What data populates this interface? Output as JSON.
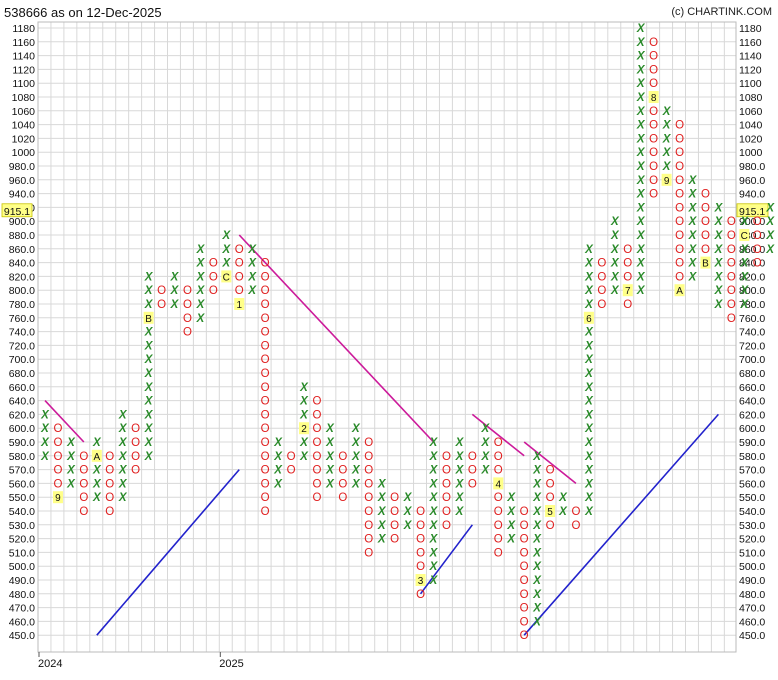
{
  "header": {
    "title": "538666 as on 12-Dec-2025",
    "credit": "(c) CHARTINK.COM"
  },
  "chart_data": {
    "type": "point-and-figure",
    "y_ticks": [
      450,
      460,
      470,
      480,
      490,
      500,
      510,
      520,
      530,
      540,
      550,
      560,
      570,
      580,
      590,
      600,
      620,
      640,
      660,
      680,
      700,
      720,
      740,
      760,
      780,
      800,
      820,
      840,
      860,
      880,
      900,
      920,
      940,
      960,
      980,
      1000,
      1020,
      1040,
      1060,
      1080,
      1100,
      1120,
      1140,
      1160,
      1180
    ],
    "y_tick_labels": [
      "450.0",
      "460.0",
      "470.0",
      "480.0",
      "490.0",
      "500.0",
      "510.0",
      "520.0",
      "530.0",
      "540.0",
      "550.0",
      "560.0",
      "570.0",
      "580.0",
      "590.0",
      "600.0",
      "620.0",
      "640.0",
      "660.0",
      "680.0",
      "700.0",
      "720.0",
      "740.0",
      "760.0",
      "780.0",
      "800.0",
      "820.0",
      "840.0",
      "860.0",
      "880.0",
      "900.0",
      "920.0",
      "940.0",
      "960.0",
      "980.0",
      "1000",
      "1020",
      "1040",
      "1060",
      "1080",
      "1100",
      "1120",
      "1140",
      "1160",
      "1180"
    ],
    "last_price": "915.1",
    "last_price_level": 915.1,
    "x_labels": [
      {
        "label": "2024",
        "column": 0
      },
      {
        "label": "2025",
        "column": 14
      }
    ],
    "columns": [
      {
        "type": "X",
        "low": 580,
        "high": 620
      },
      {
        "type": "O",
        "low": 550,
        "high": 600,
        "marks": [
          {
            "level": 550,
            "label": "9"
          }
        ]
      },
      {
        "type": "X",
        "low": 560,
        "high": 590
      },
      {
        "type": "O",
        "low": 540,
        "high": 580
      },
      {
        "type": "X",
        "low": 550,
        "high": 590,
        "marks": [
          {
            "level": 580,
            "label": "A"
          }
        ]
      },
      {
        "type": "O",
        "low": 540,
        "high": 580
      },
      {
        "type": "X",
        "low": 550,
        "high": 620
      },
      {
        "type": "O",
        "low": 570,
        "high": 600
      },
      {
        "type": "X",
        "low": 580,
        "high": 820,
        "marks": [
          {
            "level": 760,
            "label": "B"
          }
        ]
      },
      {
        "type": "O",
        "low": 780,
        "high": 800
      },
      {
        "type": "X",
        "low": 780,
        "high": 820
      },
      {
        "type": "O",
        "low": 740,
        "high": 800
      },
      {
        "type": "X",
        "low": 760,
        "high": 860
      },
      {
        "type": "O",
        "low": 800,
        "high": 840
      },
      {
        "type": "X",
        "low": 820,
        "high": 880,
        "marks": [
          {
            "level": 820,
            "label": "C"
          }
        ]
      },
      {
        "type": "O",
        "low": 780,
        "high": 860,
        "marks": [
          {
            "level": 780,
            "label": "1"
          }
        ]
      },
      {
        "type": "X",
        "low": 800,
        "high": 860
      },
      {
        "type": "O",
        "low": 540,
        "high": 840
      },
      {
        "type": "X",
        "low": 560,
        "high": 590
      },
      {
        "type": "O",
        "low": 570,
        "high": 580
      },
      {
        "type": "X",
        "low": 580,
        "high": 660,
        "marks": [
          {
            "level": 600,
            "label": "2"
          }
        ]
      },
      {
        "type": "O",
        "low": 550,
        "high": 640
      },
      {
        "type": "X",
        "low": 560,
        "high": 600
      },
      {
        "type": "O",
        "low": 550,
        "high": 580
      },
      {
        "type": "X",
        "low": 560,
        "high": 600
      },
      {
        "type": "O",
        "low": 510,
        "high": 590
      },
      {
        "type": "X",
        "low": 520,
        "high": 560
      },
      {
        "type": "O",
        "low": 520,
        "high": 550
      },
      {
        "type": "X",
        "low": 530,
        "high": 550
      },
      {
        "type": "O",
        "low": 480,
        "high": 540,
        "marks": [
          {
            "level": 490,
            "label": "3"
          }
        ]
      },
      {
        "type": "X",
        "low": 490,
        "high": 590
      },
      {
        "type": "O",
        "low": 530,
        "high": 580
      },
      {
        "type": "X",
        "low": 540,
        "high": 590
      },
      {
        "type": "O",
        "low": 560,
        "high": 580
      },
      {
        "type": "X",
        "low": 570,
        "high": 600
      },
      {
        "type": "O",
        "low": 510,
        "high": 590,
        "marks": [
          {
            "level": 560,
            "label": "4"
          }
        ]
      },
      {
        "type": "X",
        "low": 520,
        "high": 550
      },
      {
        "type": "O",
        "low": 450,
        "high": 540
      },
      {
        "type": "X",
        "low": 460,
        "high": 580
      },
      {
        "type": "O",
        "low": 530,
        "high": 570,
        "marks": [
          {
            "level": 540,
            "label": "5"
          }
        ]
      },
      {
        "type": "X",
        "low": 540,
        "high": 550
      },
      {
        "type": "O",
        "low": 530,
        "high": 540
      },
      {
        "type": "X",
        "low": 540,
        "high": 860,
        "marks": [
          {
            "level": 760,
            "label": "6"
          }
        ]
      },
      {
        "type": "O",
        "low": 780,
        "high": 840
      },
      {
        "type": "X",
        "low": 800,
        "high": 900
      },
      {
        "type": "O",
        "low": 780,
        "high": 860,
        "marks": [
          {
            "level": 800,
            "label": "7"
          }
        ]
      },
      {
        "type": "X",
        "low": 800,
        "high": 1180
      },
      {
        "type": "O",
        "low": 940,
        "high": 1160,
        "marks": [
          {
            "level": 1080,
            "label": "8"
          }
        ]
      },
      {
        "type": "X",
        "low": 960,
        "high": 1060,
        "marks": [
          {
            "level": 960,
            "label": "9"
          }
        ]
      },
      {
        "type": "O",
        "low": 800,
        "high": 1040,
        "marks": [
          {
            "level": 800,
            "label": "A"
          }
        ]
      },
      {
        "type": "X",
        "low": 820,
        "high": 960
      },
      {
        "type": "O",
        "low": 840,
        "high": 940,
        "marks": [
          {
            "level": 840,
            "label": "B"
          }
        ]
      },
      {
        "type": "X",
        "low": 780,
        "high": 920
      },
      {
        "type": "O",
        "low": 760,
        "high": 900
      },
      {
        "type": "X",
        "low": 780,
        "high": 900,
        "marks": [
          {
            "level": 880,
            "label": "C"
          }
        ]
      },
      {
        "type": "O",
        "low": 840,
        "high": 900
      },
      {
        "type": "X",
        "low": 860,
        "high": 920
      }
    ],
    "trendlines": [
      {
        "kind": "resistance",
        "color": "#cc1a9a",
        "from": {
          "column": 0,
          "level": 640
        },
        "to": {
          "column": 3,
          "level": 590
        }
      },
      {
        "kind": "support",
        "color": "#2222cc",
        "from": {
          "column": 4,
          "level": 450
        },
        "to": {
          "column": 15,
          "level": 570
        }
      },
      {
        "kind": "resistance",
        "color": "#cc1a9a",
        "from": {
          "column": 15,
          "level": 880
        },
        "to": {
          "column": 30,
          "level": 590
        }
      },
      {
        "kind": "support",
        "color": "#2222cc",
        "from": {
          "column": 29,
          "level": 480
        },
        "to": {
          "column": 33,
          "level": 530
        }
      },
      {
        "kind": "resistance",
        "color": "#cc1a9a",
        "from": {
          "column": 33,
          "level": 620
        },
        "to": {
          "column": 37,
          "level": 580
        }
      },
      {
        "kind": "resistance",
        "color": "#cc1a9a",
        "from": {
          "column": 37,
          "level": 590
        },
        "to": {
          "column": 41,
          "level": 560
        }
      },
      {
        "kind": "support",
        "color": "#2222cc",
        "from": {
          "column": 37,
          "level": 450
        },
        "to": {
          "column": 52,
          "level": 620
        }
      }
    ],
    "grid": true,
    "x_color": "#2a8a2a",
    "o_color": "#e02020",
    "highlight_color": "#ffff88"
  }
}
